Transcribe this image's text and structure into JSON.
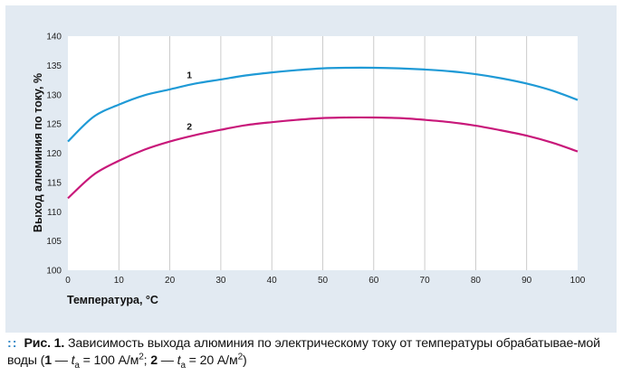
{
  "chart_data": {
    "type": "line",
    "xlabel": "Температура, °С",
    "ylabel": "Выход алюминия по току, %",
    "xlim": [
      0,
      100
    ],
    "ylim": [
      100,
      140
    ],
    "xticks": [
      "0",
      "10",
      "20",
      "30",
      "40",
      "50",
      "60",
      "70",
      "80",
      "90",
      "100"
    ],
    "yticks": [
      "100",
      "105",
      "110",
      "115",
      "120",
      "125",
      "130",
      "135",
      "140"
    ],
    "grid": "vertical",
    "series": [
      {
        "name": "1",
        "color": "#1f9ad6",
        "x": [
          0,
          5,
          10,
          15,
          20,
          25,
          30,
          35,
          40,
          45,
          50,
          55,
          60,
          65,
          70,
          75,
          80,
          85,
          90,
          95,
          100
        ],
        "y": [
          122.0,
          126.2,
          128.3,
          129.9,
          130.9,
          131.9,
          132.6,
          133.3,
          133.8,
          134.2,
          134.5,
          134.6,
          134.6,
          134.5,
          134.3,
          134.0,
          133.5,
          132.8,
          131.9,
          130.7,
          129.1
        ]
      },
      {
        "name": "2",
        "color": "#c8187a",
        "x": [
          0,
          5,
          10,
          15,
          20,
          25,
          30,
          35,
          40,
          45,
          50,
          55,
          60,
          65,
          70,
          75,
          80,
          85,
          90,
          95,
          100
        ],
        "y": [
          112.3,
          116.3,
          118.7,
          120.6,
          122.0,
          123.1,
          124.0,
          124.8,
          125.3,
          125.7,
          126.0,
          126.1,
          126.1,
          126.0,
          125.7,
          125.3,
          124.7,
          123.9,
          123.0,
          121.8,
          120.3
        ]
      }
    ]
  },
  "caption": {
    "prefix": "Рис. 1.",
    "text": "Зависимость выхода алюминия по электрическому току от температуры обрабатывае-мой воды (",
    "s1_num": "1",
    "s1_dash": " — ",
    "s1_t": "t",
    "s1_sub": "a",
    "s1_val": " = 100 А/м",
    "s1_sup": "2",
    "sep": "; ",
    "s2_num": "2",
    "s2_dash": " — ",
    "s2_t": "t",
    "s2_sub": "a",
    "s2_val": " = 20 А/м",
    "s2_sup": "2",
    "end": ")"
  },
  "colors": {
    "panel_bg": "#e2eaf2",
    "plot_bg": "#ffffff",
    "caption_marker": "#2f86c6"
  }
}
